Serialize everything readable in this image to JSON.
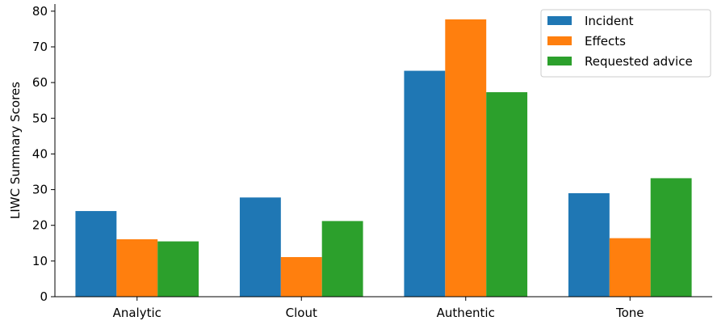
{
  "chart_data": {
    "type": "bar",
    "title": "",
    "xlabel": "",
    "ylabel": "LIWC Summary Scores",
    "categories": [
      "Analytic",
      "Clout",
      "Authentic",
      "Tone"
    ],
    "series": [
      {
        "name": "Incident",
        "color": "#1f77b4",
        "values": [
          24.0,
          27.8,
          63.3,
          29.0
        ]
      },
      {
        "name": "Effects",
        "color": "#ff7f0e",
        "values": [
          16.1,
          11.1,
          77.7,
          16.4
        ]
      },
      {
        "name": "Requested advice",
        "color": "#2ca02c",
        "values": [
          15.5,
          21.2,
          57.3,
          33.2
        ]
      }
    ],
    "ylim": [
      0,
      82
    ],
    "yticks": [
      0,
      10,
      20,
      30,
      40,
      50,
      60,
      70,
      80
    ],
    "grid": false,
    "legend": "top-right"
  }
}
